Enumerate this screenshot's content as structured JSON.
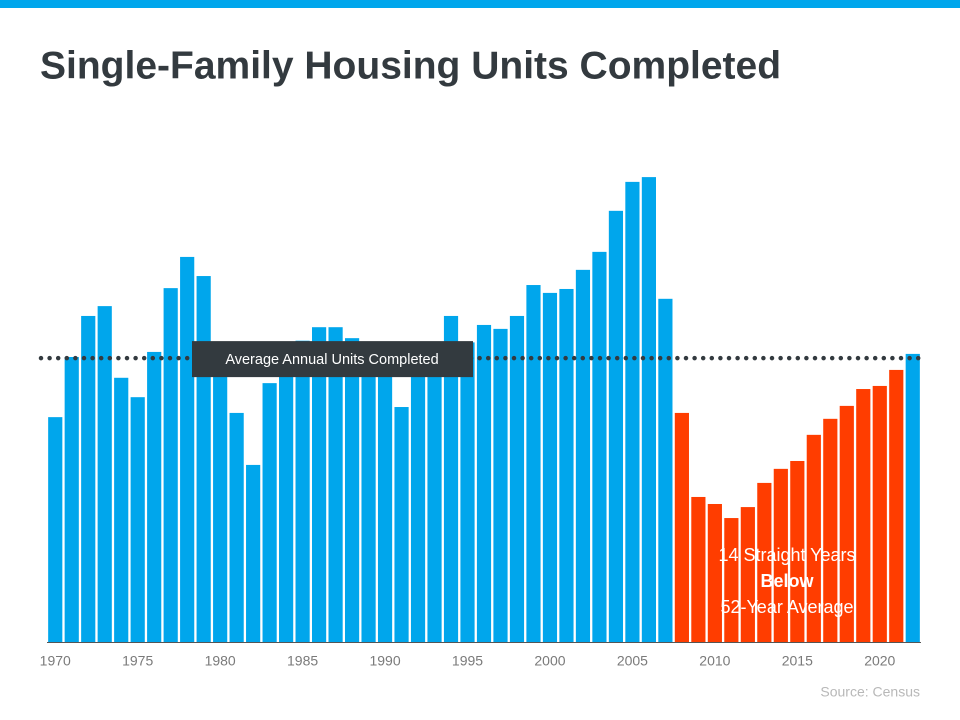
{
  "chart_data": {
    "type": "bar",
    "title": "Single-Family Housing Units Completed",
    "categories": [
      "1970",
      null,
      null,
      null,
      null,
      "1975",
      null,
      null,
      null,
      null,
      "1980",
      null,
      null,
      null,
      null,
      "1985",
      null,
      null,
      null,
      null,
      "1990",
      null,
      null,
      null,
      null,
      "1995",
      null,
      null,
      null,
      null,
      "2000",
      null,
      null,
      null,
      null,
      "2005",
      null,
      null,
      null,
      null,
      "2010",
      null,
      null,
      null,
      null,
      "2015",
      null,
      null,
      null,
      null,
      "2020",
      null,
      null
    ],
    "values": [
      800,
      1014,
      1160,
      1195,
      940,
      871,
      1032,
      1259,
      1370,
      1302,
      957,
      815,
      630,
      921,
      1025,
      1072,
      1120,
      1120,
      1081,
      1026,
      966,
      836,
      964,
      1039,
      1160,
      1066,
      1128,
      1114,
      1160,
      1270,
      1242,
      1256,
      1324,
      1388,
      1534,
      1637,
      1654,
      1221,
      815,
      516,
      491,
      441,
      480,
      566,
      616,
      644,
      737,
      794,
      840,
      900,
      911,
      968,
      1025
    ],
    "colors": [
      "#00a6ec",
      "#00a6ec",
      "#00a6ec",
      "#00a6ec",
      "#00a6ec",
      "#00a6ec",
      "#00a6ec",
      "#00a6ec",
      "#00a6ec",
      "#00a6ec",
      "#00a6ec",
      "#00a6ec",
      "#00a6ec",
      "#00a6ec",
      "#00a6ec",
      "#00a6ec",
      "#00a6ec",
      "#00a6ec",
      "#00a6ec",
      "#00a6ec",
      "#00a6ec",
      "#00a6ec",
      "#00a6ec",
      "#00a6ec",
      "#00a6ec",
      "#00a6ec",
      "#00a6ec",
      "#00a6ec",
      "#00a6ec",
      "#00a6ec",
      "#00a6ec",
      "#00a6ec",
      "#00a6ec",
      "#00a6ec",
      "#00a6ec",
      "#00a6ec",
      "#00a6ec",
      "#00a6ec",
      "#ff3d00",
      "#ff3d00",
      "#ff3d00",
      "#ff3d00",
      "#ff3d00",
      "#ff3d00",
      "#ff3d00",
      "#ff3d00",
      "#ff3d00",
      "#ff3d00",
      "#ff3d00",
      "#ff3d00",
      "#ff3d00",
      "#ff3d00",
      "#00a6ec"
    ],
    "ylim": [
      0,
      1786
    ],
    "reference": {
      "label": "Average Annual Units Completed",
      "value": 1010
    },
    "annotation": [
      "14 Straight Years",
      "Below",
      "52-Year Average"
    ],
    "source": "Source: Census"
  }
}
